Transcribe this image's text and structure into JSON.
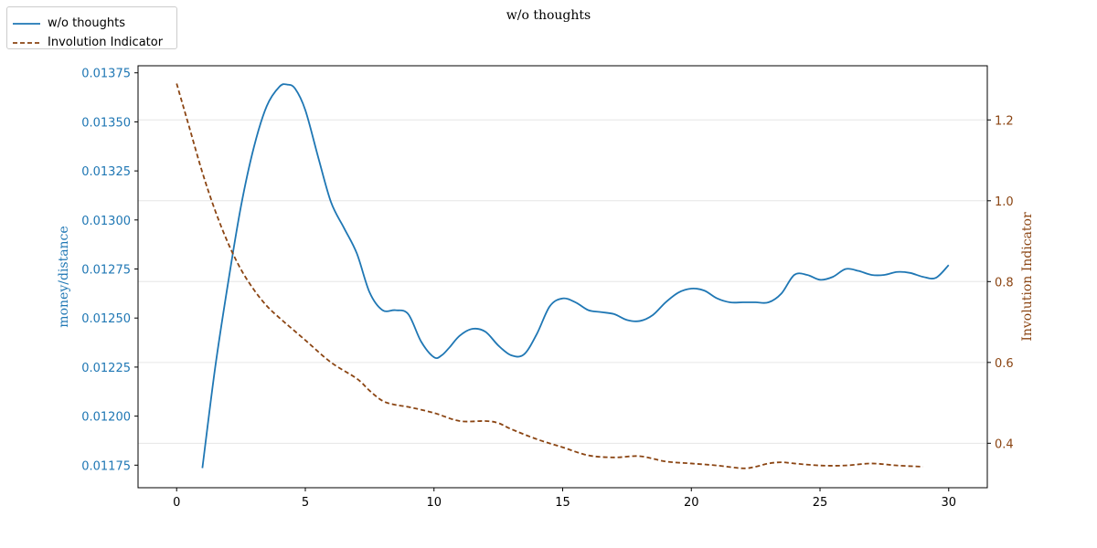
{
  "chart_data": {
    "type": "line",
    "title": "w/o thoughts",
    "xlabel": "",
    "ylabel": "money/distance",
    "ylabel_right": "Involution Indicator",
    "xlim": [
      -1.5,
      31.5
    ],
    "ylim": [
      0.011635,
      0.013786
    ],
    "ylim_right": [
      0.29,
      1.334
    ],
    "x_ticks": [
      0,
      5,
      10,
      15,
      20,
      25,
      30
    ],
    "x_tick_labels": [
      "0",
      "5",
      "10",
      "15",
      "20",
      "25",
      "30"
    ],
    "y_ticks": [
      0.01175,
      0.012,
      0.01225,
      0.0125,
      0.01275,
      0.013,
      0.01325,
      0.0135,
      0.01375
    ],
    "y_tick_labels": [
      "0.01175",
      "0.01200",
      "0.01225",
      "0.01250",
      "0.01275",
      "0.01300",
      "0.01325",
      "0.01350",
      "0.01375"
    ],
    "y_ticks_right": [
      0.4,
      0.6,
      0.8,
      1.0,
      1.2
    ],
    "y_tick_labels_right": [
      "0.4",
      "0.6",
      "0.8",
      "1.0",
      "1.2"
    ],
    "grid": "horizontal (right axis)",
    "legend_position": "top-left",
    "series": [
      {
        "name": "w/o thoughts",
        "axis": "left",
        "color": "#1f77b4",
        "style": "solid",
        "x": [
          1,
          1.5,
          2,
          2.5,
          3,
          3.5,
          4,
          4.3,
          4.6,
          5,
          5.5,
          6,
          6.5,
          7,
          7.5,
          8,
          8.5,
          9,
          9.5,
          10,
          10.3,
          10.6,
          11,
          11.5,
          12,
          12.5,
          13,
          13.5,
          14,
          14.5,
          15,
          15.5,
          16,
          16.5,
          17,
          17.5,
          18,
          18.5,
          19,
          19.5,
          20,
          20.5,
          21,
          21.5,
          22,
          22.5,
          23,
          23.5,
          24,
          24.5,
          25,
          25.5,
          26,
          26.5,
          27,
          27.5,
          28,
          28.5,
          29,
          29.5,
          30
        ],
        "values": [
          0.011735,
          0.01225,
          0.01268,
          0.01307,
          0.01337,
          0.01358,
          0.01368,
          0.01369,
          0.01367,
          0.01356,
          0.01332,
          0.01309,
          0.01296,
          0.01283,
          0.01263,
          0.01254,
          0.01254,
          0.01252,
          0.01238,
          0.0123,
          0.01231,
          0.01235,
          0.01241,
          0.012445,
          0.01243,
          0.01236,
          0.01231,
          0.012315,
          0.01242,
          0.01256,
          0.0126,
          0.01258,
          0.01254,
          0.01253,
          0.01252,
          0.01249,
          0.012485,
          0.012515,
          0.01258,
          0.01263,
          0.01265,
          0.01264,
          0.0126,
          0.01258,
          0.01258,
          0.01258,
          0.01258,
          0.012625,
          0.01272,
          0.01272,
          0.012695,
          0.01271,
          0.01275,
          0.01274,
          0.01272,
          0.01272,
          0.012735,
          0.01273,
          0.01271,
          0.012705,
          0.01277
        ]
      },
      {
        "name": "Involution Indicator",
        "axis": "right",
        "color": "#8b4513",
        "style": "dashed",
        "x": [
          0,
          0.5,
          1,
          1.5,
          2,
          2.5,
          3,
          3.5,
          4,
          5,
          6,
          7,
          7.5,
          8,
          8.5,
          9,
          10,
          11,
          12,
          12.5,
          13,
          14,
          15,
          16,
          17,
          18,
          19,
          20,
          21,
          22,
          22.5,
          23,
          23.5,
          24,
          25,
          26,
          27,
          28,
          29
        ],
        "values": [
          1.29,
          1.18,
          1.07,
          0.975,
          0.895,
          0.83,
          0.78,
          0.74,
          0.71,
          0.655,
          0.6,
          0.56,
          0.53,
          0.505,
          0.495,
          0.49,
          0.475,
          0.455,
          0.455,
          0.45,
          0.435,
          0.41,
          0.39,
          0.37,
          0.365,
          0.368,
          0.355,
          0.35,
          0.345,
          0.338,
          0.342,
          0.35,
          0.353,
          0.35,
          0.345,
          0.345,
          0.35,
          0.345,
          0.342
        ]
      }
    ]
  },
  "colors": {
    "left_axis": "#1f77b4",
    "right_axis": "#8b4513",
    "grid": "#e6e6e6"
  }
}
